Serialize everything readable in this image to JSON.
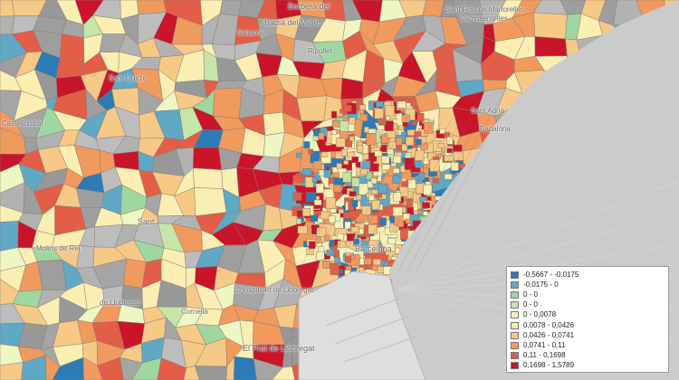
{
  "map": {
    "colors": {
      "sea": "#c9c9c9",
      "land_nodata": "#a7a7a7",
      "land_light": "#bcbcbc",
      "urban_lines": "#8a8a8a",
      "port": "#dcdcdc"
    }
  },
  "place_labels": [
    {
      "id": "barbera",
      "text": "Barberà del"
    },
    {
      "id": "martorelles",
      "text": "Sant Fost de Martorelles"
    },
    {
      "id": "campsentelles",
      "text": "Campsentelles"
    },
    {
      "id": "valles",
      "text": "Badia del Vallès"
    },
    {
      "id": "sallarca",
      "text": "Sallarca"
    },
    {
      "id": "barcelona",
      "text": "Barcelona"
    },
    {
      "id": "prat",
      "text": "El Prat de Llobregat"
    },
    {
      "id": "hospitalet",
      "text": "L'Hospitalet de Llobregat"
    },
    {
      "id": "santjust",
      "text": "Sant"
    },
    {
      "id": "adrià",
      "text": "Sant Adrià"
    },
    {
      "id": "badalona",
      "text": "Badalona"
    },
    {
      "id": "santandreu",
      "text": "de Llobregat"
    },
    {
      "id": "santquirze",
      "text": "Sant Quirze"
    },
    {
      "id": "ripollet",
      "text": "Ripollet"
    },
    {
      "id": "molins",
      "text": "Molins de Rei"
    },
    {
      "id": "cornella",
      "text": "Cornellà"
    },
    {
      "id": "olesa",
      "text": "Castellbisbal"
    }
  ],
  "legend": {
    "items": [
      {
        "label": "-0,5667 - -0,0175",
        "color": "#2c7bb6"
      },
      {
        "label": "-0,0175 - 0",
        "color": "#5fa8c6"
      },
      {
        "label": "0 - 0",
        "color": "#9fd7a0"
      },
      {
        "label": "0 - 0",
        "color": "#c6e6a7"
      },
      {
        "label": "0 - 0,0078",
        "color": "#eef6c4"
      },
      {
        "label": "0,0078 - 0,0426",
        "color": "#fbeeb2"
      },
      {
        "label": "0,0426 - 0,0741",
        "color": "#f6c986"
      },
      {
        "label": "0,0741 - 0,11",
        "color": "#f19a5e"
      },
      {
        "label": "0,11 - 0,1698",
        "color": "#e35d47"
      },
      {
        "label": "0,1698 - 1,5789",
        "color": "#c9142a"
      }
    ]
  }
}
